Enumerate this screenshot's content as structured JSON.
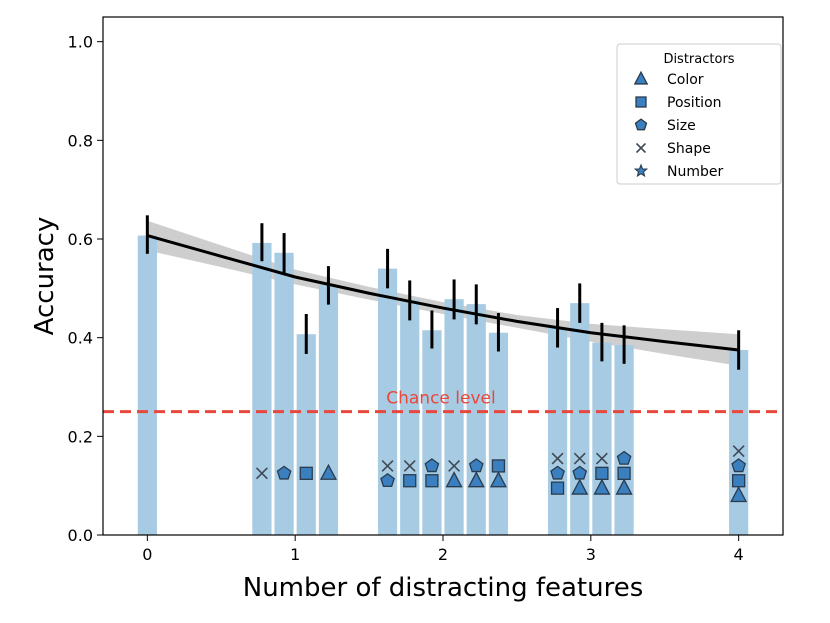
{
  "chart_data": {
    "type": "bar",
    "xlabel": "Number of distracting features",
    "ylabel": "Accuracy",
    "xlim": [
      -0.3,
      4.3
    ],
    "ylim": [
      0.0,
      1.05
    ],
    "x_ticks": [
      0,
      1,
      2,
      3,
      4
    ],
    "y_ticks": [
      0.0,
      0.2,
      0.4,
      0.6,
      0.8,
      1.0
    ],
    "grid": false,
    "colors": {
      "bar": "#a6cbe3",
      "marker": "#3a7fbf",
      "marker_edge": "#2b3b4c",
      "fit_line": "#000000",
      "ci_band": "#bdbdbd",
      "chance": "#e8483b",
      "error_bar": "#000000"
    },
    "bars": [
      {
        "x": 0.0,
        "value": 0.607,
        "err_low": 0.57,
        "err_high": 0.648,
        "distractors": []
      },
      {
        "x": 0.775,
        "value": 0.592,
        "err_low": 0.555,
        "err_high": 0.632,
        "distractors": [
          {
            "type": "Shape",
            "y": 0.125
          }
        ]
      },
      {
        "x": 0.925,
        "value": 0.572,
        "err_low": 0.53,
        "err_high": 0.612,
        "distractors": [
          {
            "type": "Size",
            "y": 0.125
          }
        ]
      },
      {
        "x": 1.075,
        "value": 0.407,
        "err_low": 0.367,
        "err_high": 0.448,
        "distractors": [
          {
            "type": "Position",
            "y": 0.125
          }
        ]
      },
      {
        "x": 1.225,
        "value": 0.507,
        "err_low": 0.467,
        "err_high": 0.545,
        "distractors": [
          {
            "type": "Color",
            "y": 0.125
          }
        ]
      },
      {
        "x": 1.625,
        "value": 0.54,
        "err_low": 0.5,
        "err_high": 0.58,
        "distractors": [
          {
            "type": "Shape",
            "y": 0.14
          },
          {
            "type": "Size",
            "y": 0.11
          }
        ]
      },
      {
        "x": 1.775,
        "value": 0.477,
        "err_low": 0.435,
        "err_high": 0.516,
        "distractors": [
          {
            "type": "Shape",
            "y": 0.14
          },
          {
            "type": "Position",
            "y": 0.11
          }
        ]
      },
      {
        "x": 1.925,
        "value": 0.415,
        "err_low": 0.378,
        "err_high": 0.455,
        "distractors": [
          {
            "type": "Size",
            "y": 0.14
          },
          {
            "type": "Position",
            "y": 0.11
          }
        ]
      },
      {
        "x": 2.075,
        "value": 0.478,
        "err_low": 0.437,
        "err_high": 0.518,
        "distractors": [
          {
            "type": "Shape",
            "y": 0.14
          },
          {
            "type": "Color",
            "y": 0.11
          }
        ]
      },
      {
        "x": 2.225,
        "value": 0.468,
        "err_low": 0.427,
        "err_high": 0.508,
        "distractors": [
          {
            "type": "Size",
            "y": 0.14
          },
          {
            "type": "Color",
            "y": 0.11
          }
        ]
      },
      {
        "x": 2.375,
        "value": 0.41,
        "err_low": 0.372,
        "err_high": 0.45,
        "distractors": [
          {
            "type": "Position",
            "y": 0.14
          },
          {
            "type": "Color",
            "y": 0.11
          }
        ]
      },
      {
        "x": 2.775,
        "value": 0.42,
        "err_low": 0.38,
        "err_high": 0.46,
        "distractors": [
          {
            "type": "Shape",
            "y": 0.155
          },
          {
            "type": "Size",
            "y": 0.125
          },
          {
            "type": "Position",
            "y": 0.095
          }
        ]
      },
      {
        "x": 2.925,
        "value": 0.47,
        "err_low": 0.43,
        "err_high": 0.51,
        "distractors": [
          {
            "type": "Shape",
            "y": 0.155
          },
          {
            "type": "Size",
            "y": 0.125
          },
          {
            "type": "Color",
            "y": 0.095
          }
        ]
      },
      {
        "x": 3.075,
        "value": 0.39,
        "err_low": 0.352,
        "err_high": 0.43,
        "distractors": [
          {
            "type": "Shape",
            "y": 0.155
          },
          {
            "type": "Position",
            "y": 0.125
          },
          {
            "type": "Color",
            "y": 0.095
          }
        ]
      },
      {
        "x": 3.225,
        "value": 0.385,
        "err_low": 0.347,
        "err_high": 0.425,
        "distractors": [
          {
            "type": "Size",
            "y": 0.155
          },
          {
            "type": "Position",
            "y": 0.125
          },
          {
            "type": "Color",
            "y": 0.095
          }
        ]
      },
      {
        "x": 4.0,
        "value": 0.375,
        "err_low": 0.335,
        "err_high": 0.415,
        "distractors": [
          {
            "type": "Shape",
            "y": 0.17
          },
          {
            "type": "Size",
            "y": 0.14
          },
          {
            "type": "Position",
            "y": 0.11
          },
          {
            "type": "Color",
            "y": 0.08
          }
        ]
      }
    ],
    "fit_line": {
      "x": [
        0,
        0.5,
        1.0,
        1.5,
        2.0,
        2.5,
        3.0,
        3.5,
        4.0
      ],
      "y": [
        0.607,
        0.565,
        0.523,
        0.49,
        0.46,
        0.433,
        0.41,
        0.392,
        0.375
      ],
      "ci_low": [
        0.577,
        0.543,
        0.508,
        0.477,
        0.448,
        0.42,
        0.392,
        0.367,
        0.343
      ],
      "ci_high": [
        0.637,
        0.587,
        0.538,
        0.503,
        0.472,
        0.446,
        0.428,
        0.417,
        0.407
      ]
    },
    "chance_level": {
      "value": 0.25,
      "label": "Chance level"
    },
    "legend": {
      "title": "Distractors",
      "placement": "top-right",
      "entries": [
        {
          "label": "Color",
          "marker": "triangle"
        },
        {
          "label": "Position",
          "marker": "square"
        },
        {
          "label": "Size",
          "marker": "pentagon"
        },
        {
          "label": "Shape",
          "marker": "x"
        },
        {
          "label": "Number",
          "marker": "star"
        }
      ]
    }
  }
}
